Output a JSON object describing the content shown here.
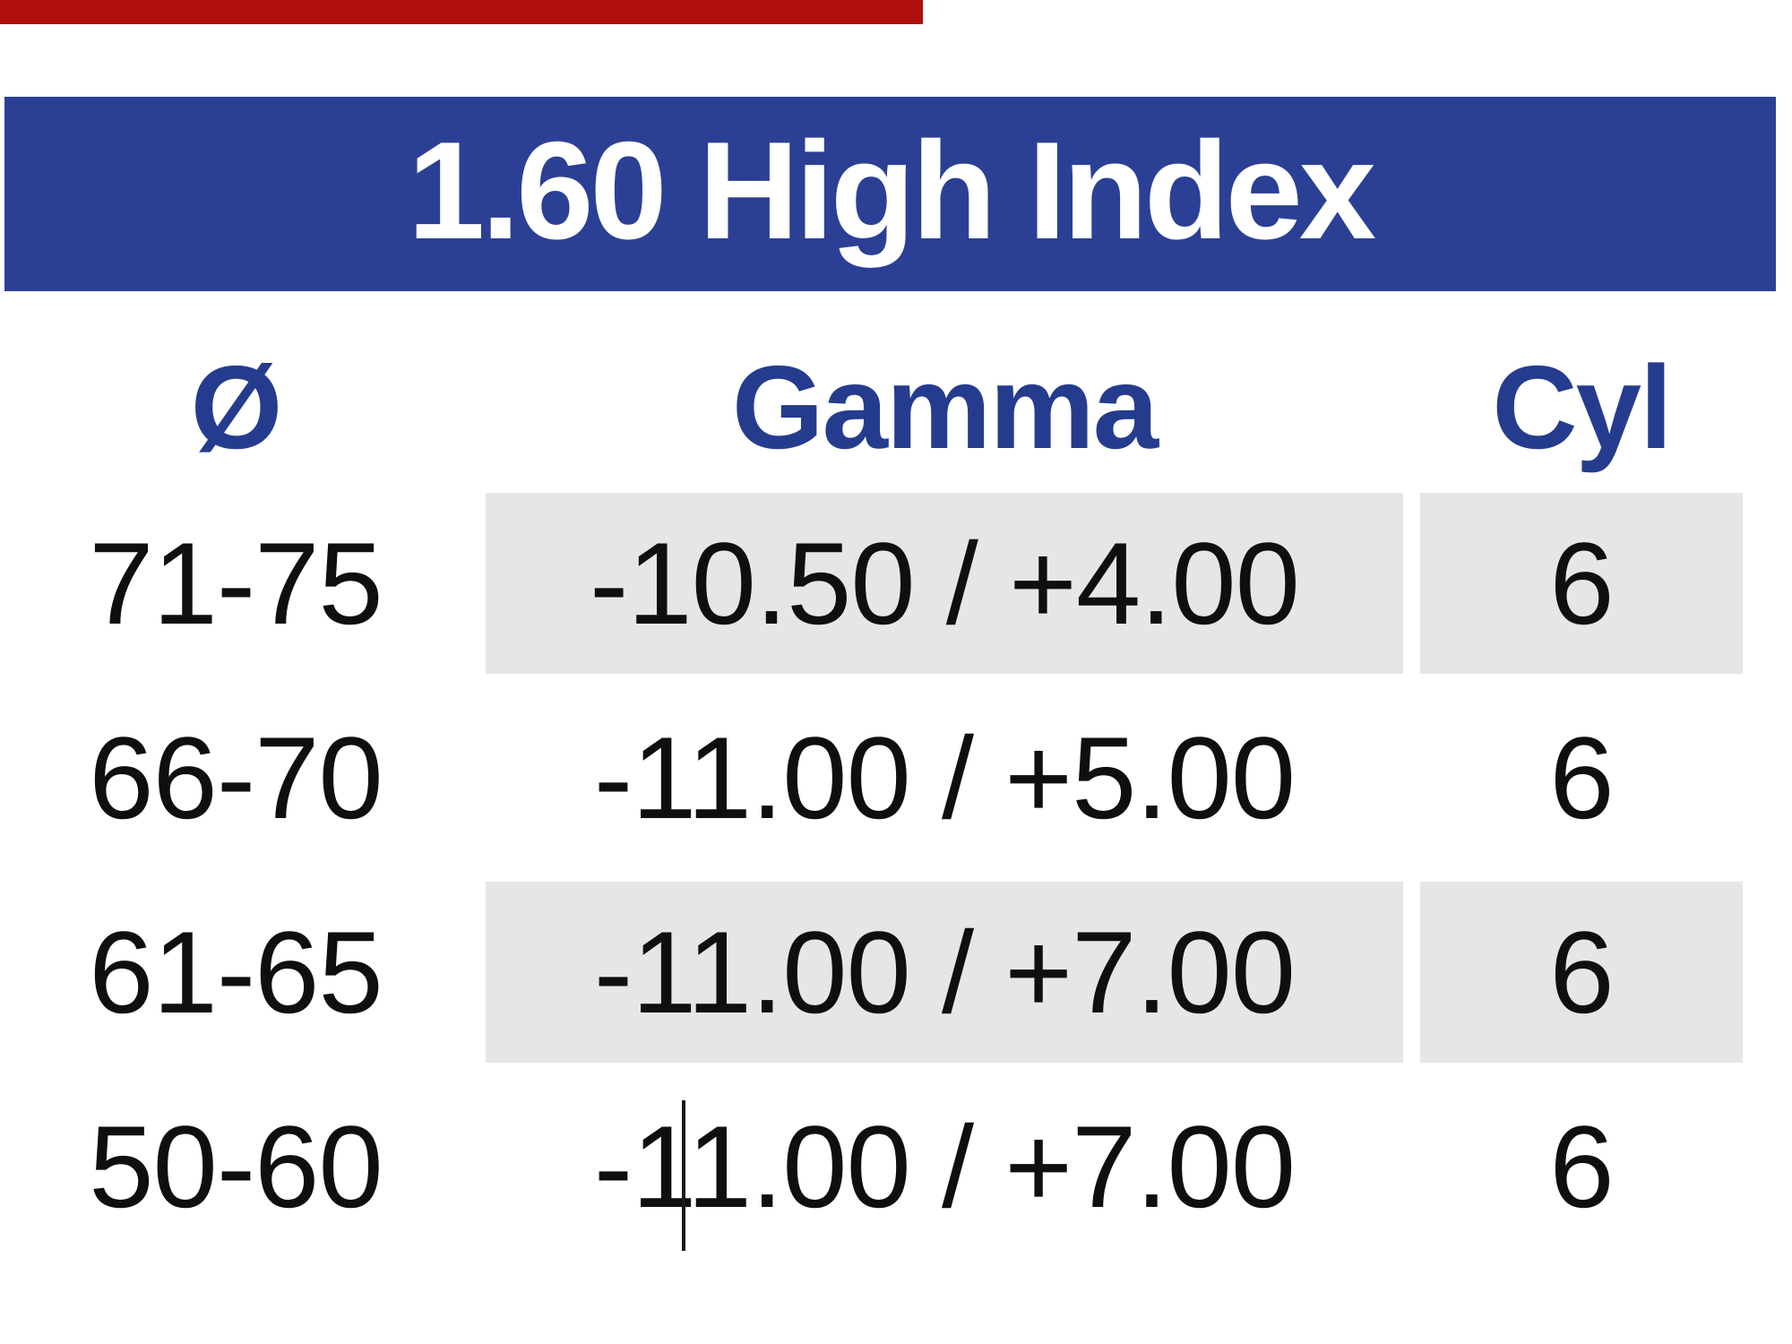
{
  "title": "1.60 High Index",
  "columns": {
    "diameter_label": "Ø",
    "gamma_label": "Gamma",
    "cyl_label": "Cyl"
  },
  "rows": [
    {
      "diameter": "71-75",
      "gamma": "-10.50 / +4.00",
      "cyl": "6",
      "shaded": true
    },
    {
      "diameter": "66-70",
      "gamma": "-11.00 / +5.00",
      "cyl": "6",
      "shaded": false
    },
    {
      "diameter": "61-65",
      "gamma": "-11.00 / +7.00",
      "cyl": "6",
      "shaded": true
    },
    {
      "diameter": "50-60",
      "gamma": "-11.00 / +7.00",
      "cyl": "6",
      "shaded": false
    }
  ],
  "colors": {
    "banner_blue": "#2b4094",
    "header_text_blue": "#253c8e",
    "shaded_row_gray": "#e6e6e6",
    "top_bar_red": "#b00d0d",
    "title_white": "#ffffff",
    "body_text": "#0f0f0f"
  }
}
